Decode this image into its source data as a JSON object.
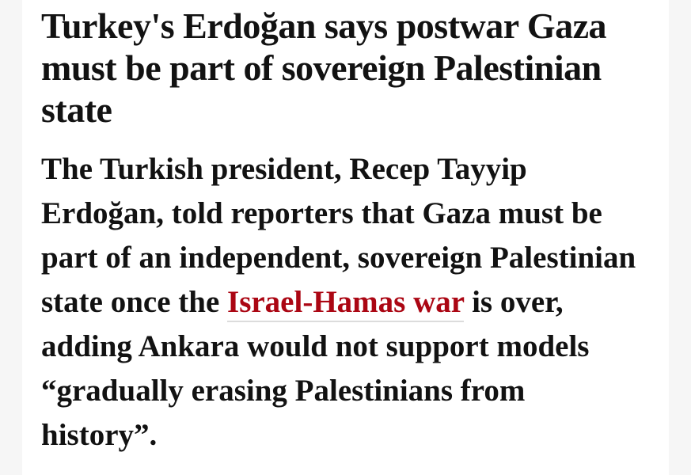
{
  "article": {
    "headline": "Turkey's Erdoğan says postwar Gaza must be part of sovereign Palestinian state",
    "standfirst": {
      "before_link": "The Turkish president, Recep Tayyip Erdoğan, told reporters that Gaza must be part of an independent, sovereign Palestinian state once the ",
      "link_text": "Israel-Hamas war",
      "after_link": " is over, adding Ankara would not support models “gradually erasing Palestinians from history”."
    }
  },
  "colors": {
    "link": "#ab0613",
    "text": "#121212",
    "background": "#f6f6f6"
  }
}
